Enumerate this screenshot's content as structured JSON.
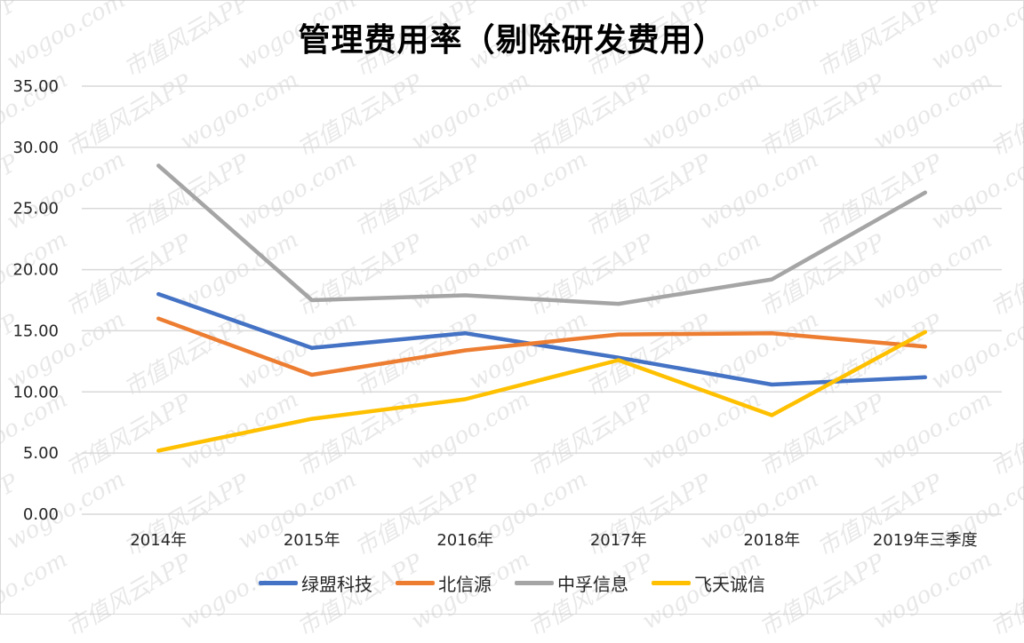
{
  "chart_data": {
    "type": "line",
    "title": "管理费用率（剔除研发费用）",
    "xlabel": "",
    "ylabel": "",
    "categories": [
      "2014年",
      "2015年",
      "2016年",
      "2017年",
      "2018年",
      "2019年三季度"
    ],
    "yticks": [
      "0.00",
      "5.00",
      "10.00",
      "15.00",
      "20.00",
      "25.00",
      "30.00",
      "35.00"
    ],
    "ylim": [
      0,
      35
    ],
    "grid": true,
    "legend_position": "bottom",
    "series": [
      {
        "name": "绿盟科技",
        "color": "#4472C4",
        "values": [
          18.0,
          13.6,
          14.8,
          12.8,
          10.6,
          11.2
        ]
      },
      {
        "name": "北信源",
        "color": "#ED7D31",
        "values": [
          16.0,
          11.4,
          13.4,
          14.7,
          14.8,
          13.7
        ]
      },
      {
        "name": "中孚信息",
        "color": "#A5A5A5",
        "values": [
          28.5,
          17.5,
          17.9,
          17.2,
          19.2,
          26.3
        ]
      },
      {
        "name": "飞天诚信",
        "color": "#FFC000",
        "values": [
          5.2,
          7.8,
          9.4,
          12.6,
          8.1,
          14.9
        ]
      }
    ]
  },
  "watermarks": [
    "wogoo.com",
    "市值风云APP"
  ]
}
